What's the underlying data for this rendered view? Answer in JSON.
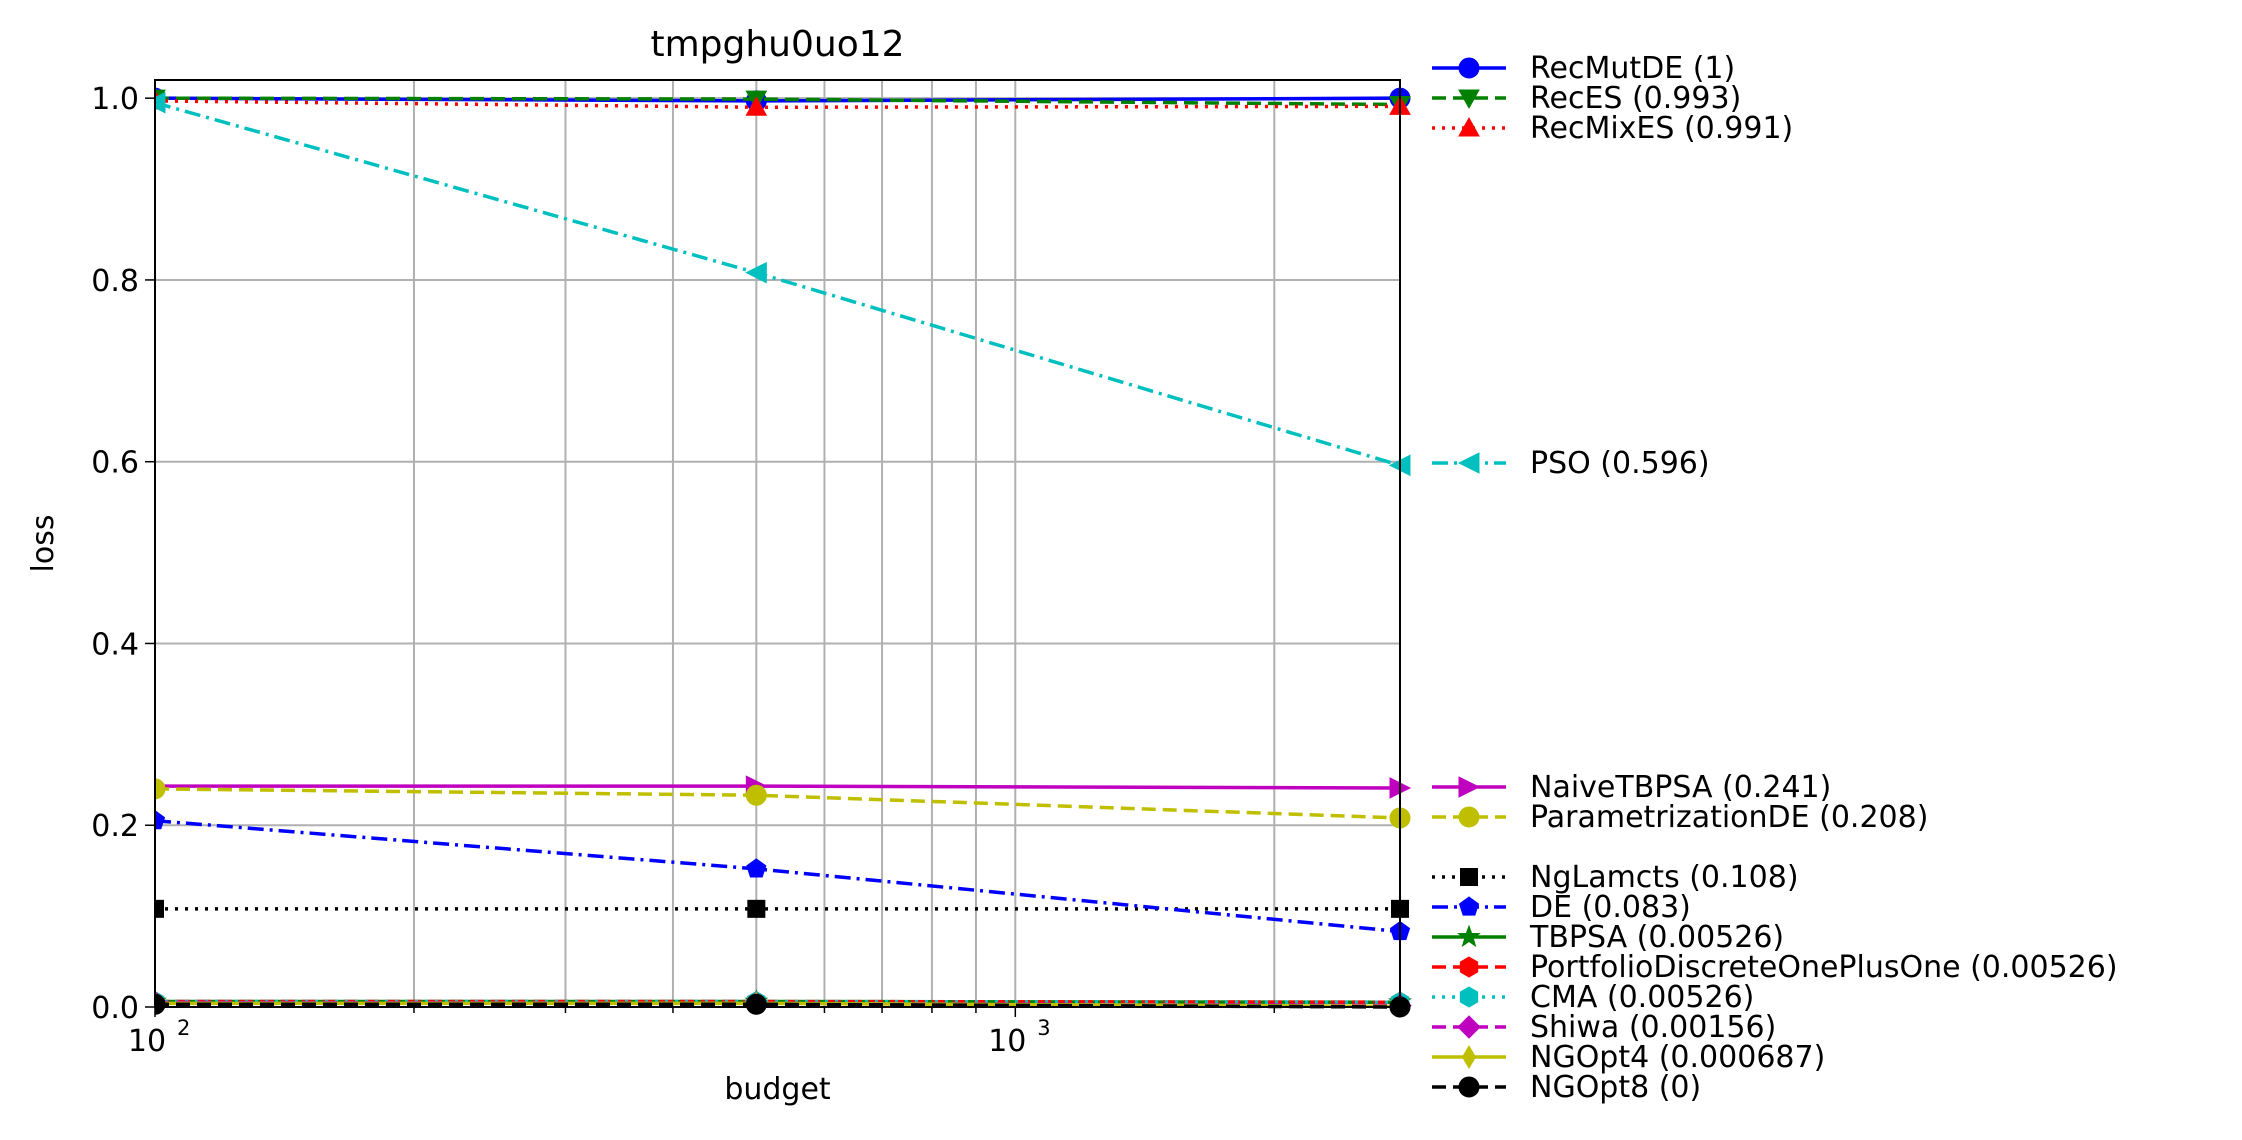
{
  "chart_data": {
    "type": "line",
    "title": "tmpghu0uo12",
    "xlabel": "budget",
    "ylabel": "loss",
    "x_scale": "log",
    "xlim": [
      100,
      2800
    ],
    "ylim": [
      0,
      1.02
    ],
    "x_ticks": [
      {
        "value": 100,
        "base": "10",
        "exp": "2"
      },
      {
        "value": 1000,
        "base": "10",
        "exp": "3"
      }
    ],
    "y_ticks": [
      {
        "value": 0.0,
        "label": "0.0"
      },
      {
        "value": 0.2,
        "label": "0.2"
      },
      {
        "value": 0.4,
        "label": "0.4"
      },
      {
        "value": 0.6,
        "label": "0.6"
      },
      {
        "value": 0.8,
        "label": "0.8"
      },
      {
        "value": 1.0,
        "label": "1.0"
      }
    ],
    "grid": true,
    "legend_position": "right, outside plot",
    "x": [
      100,
      500,
      2800
    ],
    "series": [
      {
        "name": "RecMutDE (1)",
        "values": [
          1.0,
          0.997,
          1.0
        ],
        "color": "#0000ff",
        "dash": "solid",
        "marker": "circle"
      },
      {
        "name": "RecES (0.993)",
        "values": [
          1.0,
          0.999,
          0.993
        ],
        "color": "#008000",
        "dash": "dashed",
        "marker": "triangle-down"
      },
      {
        "name": "RecMixES (0.991)",
        "values": [
          0.997,
          0.99,
          0.991
        ],
        "color": "#ff0000",
        "dash": "dotted",
        "marker": "triangle-up"
      },
      {
        "name": "PSO (0.596)",
        "values": [
          0.995,
          0.808,
          0.596
        ],
        "color": "#00bfbf",
        "dash": "dashdot",
        "marker": "triangle-left"
      },
      {
        "name": "NaiveTBPSA (0.241)",
        "values": [
          0.243,
          0.243,
          0.241
        ],
        "color": "#bf00bf",
        "dash": "solid",
        "marker": "triangle-right"
      },
      {
        "name": "ParametrizationDE (0.208)",
        "values": [
          0.24,
          0.233,
          0.208
        ],
        "color": "#bfbf00",
        "dash": "dashed",
        "marker": "circle"
      },
      {
        "name": "NgLamcts (0.108)",
        "values": [
          0.108,
          0.108,
          0.108
        ],
        "color": "#000000",
        "dash": "dotted",
        "marker": "square"
      },
      {
        "name": "DE (0.083)",
        "values": [
          0.205,
          0.152,
          0.083
        ],
        "color": "#0000ff",
        "dash": "dashdot",
        "marker": "pentagon"
      },
      {
        "name": "TBPSA (0.00526)",
        "values": [
          0.006,
          0.006,
          0.00526
        ],
        "color": "#008000",
        "dash": "solid",
        "marker": "star"
      },
      {
        "name": "PortfolioDiscreteOnePlusOne (0.00526)",
        "values": [
          0.006,
          0.006,
          0.00526
        ],
        "color": "#ff0000",
        "dash": "dashed",
        "marker": "hexagon"
      },
      {
        "name": "CMA (0.00526)",
        "values": [
          0.006,
          0.006,
          0.00526
        ],
        "color": "#00bfbf",
        "dash": "dotted",
        "marker": "hexagon"
      },
      {
        "name": "Shiwa (0.00156)",
        "values": [
          0.005,
          0.004,
          0.00156
        ],
        "color": "#bf00bf",
        "dash": "dashed",
        "marker": "diamond"
      },
      {
        "name": "NGOpt4 (0.000687)",
        "values": [
          0.004,
          0.004,
          0.000687
        ],
        "color": "#bfbf00",
        "dash": "solid",
        "marker": "thin-diamond"
      },
      {
        "name": "NGOpt8 (0)",
        "values": [
          0.003,
          0.003,
          0.0
        ],
        "color": "#000000",
        "dash": "dashed",
        "marker": "circle"
      }
    ]
  }
}
